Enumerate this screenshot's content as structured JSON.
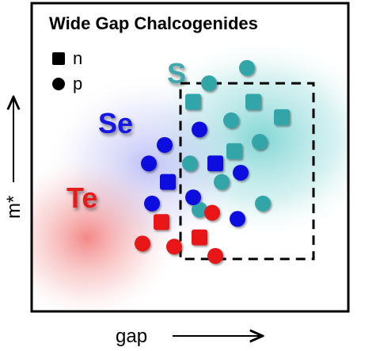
{
  "chart_data": {
    "type": "scatter",
    "title": "Wide Gap Chalcogenides",
    "xlabel": "gap",
    "ylabel": "m*",
    "legend": [
      {
        "label": "n",
        "marker": "square"
      },
      {
        "label": "p",
        "marker": "circle"
      }
    ],
    "regions": [
      {
        "label": "S",
        "color": "#3fa8ac"
      },
      {
        "label": "Se",
        "color": "#1414e6"
      },
      {
        "label": "Te",
        "color": "#e61e1e"
      }
    ],
    "series": [
      {
        "group": "S",
        "color": "#33a5a8",
        "points": [
          {
            "x": 0.68,
            "y": 0.79,
            "m": "circle"
          },
          {
            "x": 0.56,
            "y": 0.74,
            "m": "circle"
          },
          {
            "x": 0.51,
            "y": 0.68,
            "m": "square"
          },
          {
            "x": 0.7,
            "y": 0.68,
            "m": "square"
          },
          {
            "x": 0.63,
            "y": 0.62,
            "m": "circle"
          },
          {
            "x": 0.79,
            "y": 0.63,
            "m": "square"
          },
          {
            "x": 0.72,
            "y": 0.55,
            "m": "circle"
          },
          {
            "x": 0.64,
            "y": 0.52,
            "m": "square"
          },
          {
            "x": 0.5,
            "y": 0.48,
            "m": "circle"
          },
          {
            "x": 0.6,
            "y": 0.42,
            "m": "circle"
          },
          {
            "x": 0.53,
            "y": 0.33,
            "m": "circle"
          },
          {
            "x": 0.73,
            "y": 0.35,
            "m": "circle"
          }
        ]
      },
      {
        "group": "Se",
        "color": "#1010e0",
        "points": [
          {
            "x": 0.53,
            "y": 0.59,
            "m": "circle"
          },
          {
            "x": 0.42,
            "y": 0.54,
            "m": "circle"
          },
          {
            "x": 0.37,
            "y": 0.48,
            "m": "circle"
          },
          {
            "x": 0.58,
            "y": 0.48,
            "m": "square"
          },
          {
            "x": 0.66,
            "y": 0.45,
            "m": "circle"
          },
          {
            "x": 0.43,
            "y": 0.42,
            "m": "square"
          },
          {
            "x": 0.51,
            "y": 0.37,
            "m": "circle"
          },
          {
            "x": 0.38,
            "y": 0.35,
            "m": "circle"
          },
          {
            "x": 0.65,
            "y": 0.3,
            "m": "circle"
          }
        ]
      },
      {
        "group": "Te",
        "color": "#e81212",
        "points": [
          {
            "x": 0.41,
            "y": 0.29,
            "m": "square"
          },
          {
            "x": 0.57,
            "y": 0.32,
            "m": "circle"
          },
          {
            "x": 0.35,
            "y": 0.22,
            "m": "circle"
          },
          {
            "x": 0.45,
            "y": 0.21,
            "m": "circle"
          },
          {
            "x": 0.53,
            "y": 0.24,
            "m": "square"
          },
          {
            "x": 0.58,
            "y": 0.18,
            "m": "circle"
          }
        ]
      }
    ],
    "highlight_box": {
      "x": [
        0.47,
        0.89
      ],
      "y": [
        0.17,
        0.74
      ],
      "style": "dashed"
    },
    "grid": false,
    "legend_position": "top-left"
  }
}
